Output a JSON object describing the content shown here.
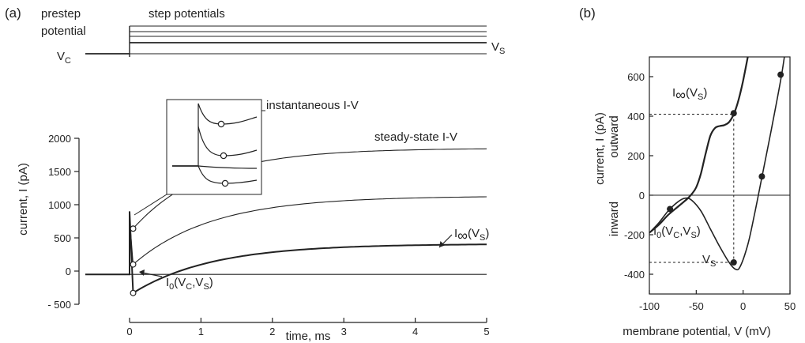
{
  "chart_data": [
    {
      "panel": "(a)",
      "type": "line",
      "protocol": {
        "prestep_label_line1": "prestep",
        "prestep_label_line2": "potential",
        "steps_label": "step potentials",
        "vc_label": "V",
        "vc_sub": "C",
        "vs_label": "V",
        "vs_sub": "S"
      },
      "xlabel": "time, ms",
      "ylabel": "current, I (pA)",
      "xlim": [
        0,
        5
      ],
      "ylim": [
        -500,
        2000
      ],
      "xticks": [
        "0",
        "1",
        "2",
        "3",
        "4",
        "5"
      ],
      "yticks": [
        "- 500",
        "0",
        "500",
        "1000",
        "1500",
        "2000"
      ],
      "ytick_values": [
        -500,
        0,
        500,
        1000,
        1500,
        2000
      ],
      "series": [
        {
          "i0": -50,
          "iinf": -50,
          "tau": 1.0,
          "spike": 0,
          "width": 1
        },
        {
          "i0": -330,
          "iinf": 410,
          "tau": 1.1,
          "spike": 900,
          "width": 2
        },
        {
          "i0": 100,
          "iinf": 1130,
          "tau": 1.1,
          "spike": 800,
          "width": 1
        },
        {
          "i0": 640,
          "iinf": 1850,
          "tau": 1.0,
          "spike": 600,
          "width": 1
        }
      ],
      "instantaneous_points": [
        {
          "x": 0.05,
          "y": 640
        },
        {
          "x": 0.05,
          "y": 100
        },
        {
          "x": 0.05,
          "y": -330
        }
      ],
      "annotations": {
        "instantaneous": "instantaneous I-V",
        "steady_state": "steady-state I-V",
        "i_inf_main": "I",
        "i_inf_sub": "∞",
        "i_inf_args": "(V",
        "i_inf_args_sub": "S",
        "i_inf_close": ")",
        "i0_main": "I",
        "i0_sub": "0",
        "i0_args": "(V",
        "i0_args_sub1": "C",
        "i0_comma": ",V",
        "i0_args_sub2": "S",
        "i0_close": ")"
      }
    },
    {
      "panel": "(b)",
      "type": "line",
      "xlabel": "membrane  potential, V (mV)",
      "ylabel": "current, I (pA)",
      "ylabel_outward": "outward",
      "ylabel_inward": "inward",
      "xlim": [
        -100,
        50
      ],
      "ylim": [
        -500,
        700
      ],
      "xticks": [
        "-100",
        "-50",
        "0",
        "50"
      ],
      "xtick_values": [
        -100,
        -50,
        0,
        50
      ],
      "yticks": [
        "-400",
        "-200",
        "0",
        "200",
        "400",
        "600"
      ],
      "ytick_values": [
        -400,
        -200,
        0,
        200,
        400,
        600
      ],
      "steady_state_curve": [
        [
          -100,
          -190
        ],
        [
          -90,
          -150
        ],
        [
          -80,
          -100
        ],
        [
          -70,
          -60
        ],
        [
          -60,
          -20
        ],
        [
          -55,
          5
        ],
        [
          -50,
          40
        ],
        [
          -45,
          110
        ],
        [
          -40,
          210
        ],
        [
          -35,
          300
        ],
        [
          -30,
          340
        ],
        [
          -25,
          350
        ],
        [
          -20,
          355
        ],
        [
          -15,
          370
        ],
        [
          -10,
          410
        ],
        [
          -5,
          480
        ],
        [
          0,
          580
        ],
        [
          5,
          700
        ]
      ],
      "instantaneous_curve": [
        [
          -100,
          -190
        ],
        [
          -90,
          -140
        ],
        [
          -80,
          -80
        ],
        [
          -70,
          -35
        ],
        [
          -62,
          -15
        ],
        [
          -55,
          -25
        ],
        [
          -45,
          -80
        ],
        [
          -35,
          -170
        ],
        [
          -25,
          -260
        ],
        [
          -15,
          -340
        ],
        [
          -8,
          -375
        ],
        [
          -3,
          -360
        ],
        [
          5,
          -250
        ],
        [
          12,
          -100
        ],
        [
          20,
          90
        ],
        [
          30,
          330
        ],
        [
          40,
          580
        ],
        [
          44,
          700
        ]
      ],
      "points": [
        {
          "x": -78,
          "y": -70
        },
        {
          "x": -10,
          "y": 415
        },
        {
          "x": -10,
          "y": -340
        },
        {
          "x": 20,
          "y": 95
        },
        {
          "x": 40,
          "y": 610
        }
      ],
      "guides": {
        "vs_x": -10,
        "i_inf_y": 410,
        "i0_y": -340
      },
      "annotations": {
        "i_inf_main": "I",
        "i_inf_sub": "∞",
        "i_inf_args": "(V",
        "i_inf_args_sub": "S",
        "i_inf_close": ")",
        "i0_main": "I",
        "i0_sub": "0",
        "i0_args": "(V",
        "i0_args_sub1": "C",
        "i0_comma": ",V",
        "i0_args_sub2": "S",
        "i0_close": ")",
        "vs_label": "V",
        "vs_sub": "S"
      }
    }
  ]
}
